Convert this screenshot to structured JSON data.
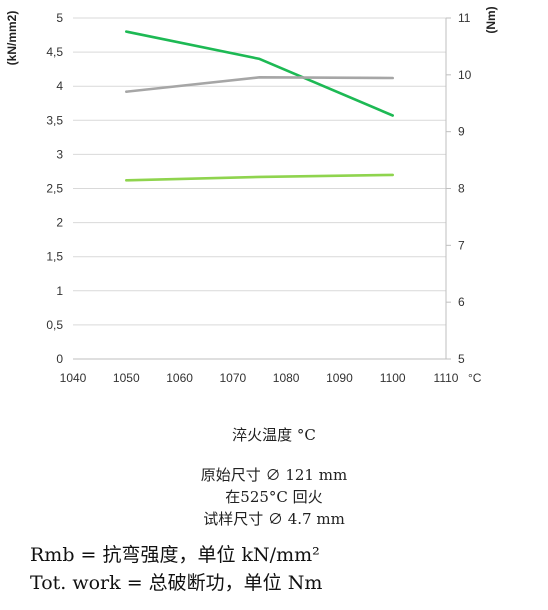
{
  "chart_data": {
    "type": "line",
    "x": [
      1050,
      1075,
      1100
    ],
    "xlim": [
      1040,
      1110
    ],
    "x_ticks": [
      "1040",
      "1050",
      "1060",
      "1070",
      "1080",
      "1090",
      "1100",
      "1110"
    ],
    "x_unit": "°C",
    "ylabel_left": "(kN/mm2)",
    "ylim_left": [
      0,
      5
    ],
    "y_ticks_left": [
      "0",
      "0,5",
      "1",
      "1,5",
      "2",
      "2,5",
      "3",
      "3,5",
      "4",
      "4,5",
      "5"
    ],
    "ylabel_right": "(Nm)",
    "ylim_right": [
      5,
      11
    ],
    "y_ticks_right": [
      "5",
      "6",
      "7",
      "8",
      "9",
      "10",
      "11"
    ],
    "grid": "horizontal",
    "series": [
      {
        "axis": "left",
        "color": "#1db954",
        "values": [
          4.8,
          4.4,
          3.57
        ]
      },
      {
        "axis": "left",
        "color": "#a6a6a6",
        "values": [
          3.92,
          4.13,
          4.12
        ]
      },
      {
        "axis": "left",
        "color": "#8fd44e",
        "values": [
          2.62,
          2.67,
          2.7
        ]
      }
    ]
  },
  "captions": {
    "xlabel": "淬火温度 °C",
    "line1": "原始尺寸 ∅ 121 mm",
    "line2": "在525°C 回火",
    "line3": "试样尺寸 ∅ 4.7 mm"
  },
  "notes": {
    "rmb": "Rmb = 抗弯强度，单位 kN/mm²",
    "work": "Tot. work = 总破断功，单位 Nm"
  }
}
